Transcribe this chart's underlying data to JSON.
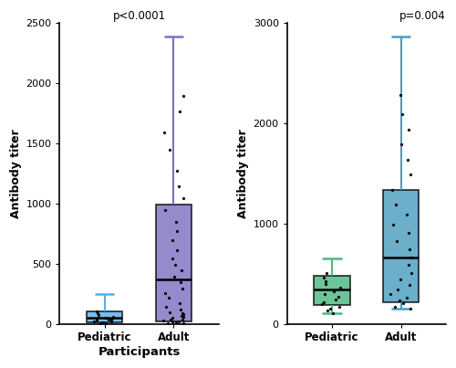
{
  "left_panel": {
    "pvalue": "p<0.0001",
    "ylabel": "Antibody titer",
    "xlabel": "Participants",
    "xtick_labels": [
      "Pediatric",
      "Adult"
    ],
    "ylim": [
      0,
      2500
    ],
    "yticks": [
      0,
      500,
      1000,
      1500,
      2000,
      2500
    ],
    "pediatric": {
      "color": "#5BAEE8",
      "q1": 10,
      "median": 55,
      "q3": 105,
      "whisker_low": 0,
      "whisker_high": 248,
      "dots": [
        5,
        8,
        12,
        18,
        22,
        28,
        33,
        38,
        44,
        52,
        62,
        72,
        88,
        108
      ]
    },
    "adult": {
      "color": "#7B72C0",
      "q1": 18,
      "median": 370,
      "q3": 990,
      "whisker_low": 0,
      "whisker_high": 2390,
      "dots": [
        5,
        8,
        12,
        18,
        22,
        28,
        33,
        38,
        48,
        58,
        68,
        78,
        88,
        98,
        118,
        145,
        175,
        215,
        255,
        295,
        345,
        395,
        445,
        495,
        545,
        615,
        695,
        775,
        845,
        945,
        1045,
        1145,
        1275,
        1445,
        1595,
        1765,
        1895
      ]
    }
  },
  "right_panel": {
    "pvalue": "p=0.004",
    "ylabel": "Antibody titer",
    "xlabel": "",
    "xtick_labels": [
      "Pediatric",
      "Adult"
    ],
    "ylim": [
      0,
      3000
    ],
    "yticks": [
      0,
      1000,
      2000,
      3000
    ],
    "pediatric": {
      "color": "#4DB882",
      "q1": 185,
      "median": 340,
      "q3": 480,
      "whisker_low": 105,
      "whisker_high": 650,
      "dots": [
        108,
        130,
        155,
        175,
        195,
        220,
        245,
        270,
        300,
        330,
        360,
        395,
        430,
        465,
        510
      ]
    },
    "adult": {
      "color": "#4B9EBF",
      "q1": 215,
      "median": 660,
      "q3": 1340,
      "whisker_low": 155,
      "whisker_high": 2870,
      "dots": [
        155,
        175,
        205,
        235,
        265,
        295,
        340,
        390,
        445,
        510,
        590,
        665,
        745,
        830,
        910,
        990,
        1090,
        1190,
        1340,
        1490,
        1640,
        1790,
        1940,
        2090,
        2280
      ]
    }
  }
}
